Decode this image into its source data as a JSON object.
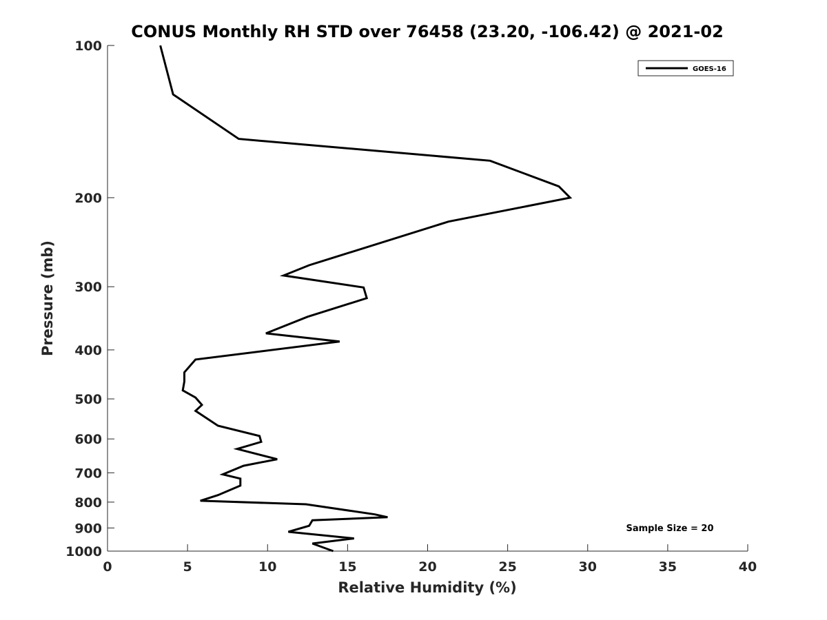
{
  "chart_data": {
    "type": "line",
    "title": "CONUS Monthly RH STD over 76458 (23.20, -106.42) @ 2021-02",
    "xlabel": "Relative Humidity (%)",
    "ylabel": "Pressure (mb)",
    "xlim": [
      0,
      40
    ],
    "ylim": [
      100,
      1000
    ],
    "yscale": "log",
    "yreversed": true,
    "xticks": [
      0,
      5,
      10,
      15,
      20,
      25,
      30,
      35,
      40
    ],
    "xtick_labels": [
      "0",
      "5",
      "10",
      "15",
      "20",
      "25",
      "30",
      "35",
      "40"
    ],
    "yticks": [
      100,
      200,
      300,
      400,
      500,
      600,
      700,
      800,
      900,
      1000
    ],
    "ytick_labels": [
      "100",
      "200",
      "300",
      "400",
      "500",
      "600",
      "700",
      "800",
      "900",
      "1000"
    ],
    "grid": false,
    "legend_position": "top-right",
    "annotation": "Sample Size = 20",
    "line_color": "#000000",
    "series": [
      {
        "name": "GOES-16",
        "x": [
          3.3,
          4.1,
          8.2,
          23.9,
          28.2,
          28.9,
          21.3,
          12.6,
          11.0,
          16.0,
          16.2,
          12.5,
          9.9,
          14.5,
          5.5,
          4.8,
          4.8,
          4.7,
          5.5,
          5.9,
          5.5,
          6.9,
          9.5,
          9.6,
          8.1,
          10.6,
          8.5,
          7.2,
          8.3,
          8.3,
          6.9,
          5.8,
          12.4,
          16.7,
          17.5,
          12.8,
          12.6,
          11.3,
          15.4,
          12.8,
          14.1
        ],
        "y": [
          100,
          125,
          153,
          169,
          190,
          200,
          223,
          272,
          285,
          301,
          316,
          344,
          371,
          385,
          418,
          443,
          462,
          481,
          497,
          514,
          528,
          565,
          592,
          608,
          628,
          658,
          678,
          705,
          719,
          742,
          775,
          795,
          808,
          846,
          857,
          869,
          891,
          916,
          944,
          966,
          1000
        ]
      }
    ]
  }
}
